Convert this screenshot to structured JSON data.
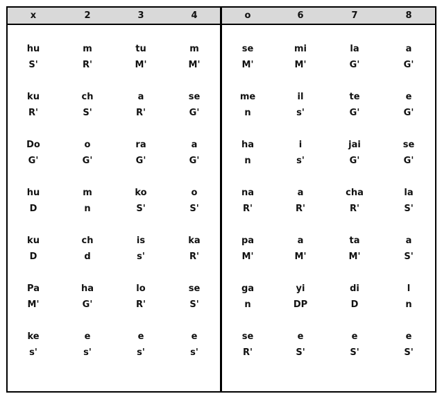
{
  "headers": [
    "x",
    "2",
    "3",
    "4",
    "o",
    "6",
    "7",
    "8"
  ],
  "rows": [
    [
      [
        "hu",
        "S'"
      ],
      [
        "m",
        "R'"
      ],
      [
        "tu",
        "M'"
      ],
      [
        "m",
        "M'"
      ],
      [
        "se",
        "M'"
      ],
      [
        "mi",
        "M'"
      ],
      [
        "la",
        "G'"
      ],
      [
        "a",
        "G'"
      ]
    ],
    [
      [
        "ku",
        "R'"
      ],
      [
        "ch",
        "S'"
      ],
      [
        "a",
        "R'"
      ],
      [
        "se",
        "G'"
      ],
      [
        "me",
        "n"
      ],
      [
        "il",
        "s'"
      ],
      [
        "te",
        "G'"
      ],
      [
        "e",
        "G'"
      ]
    ],
    [
      [
        "Do",
        "G'"
      ],
      [
        "o",
        "G'"
      ],
      [
        "ra",
        "G'"
      ],
      [
        "a",
        "G'"
      ],
      [
        "ha",
        "n"
      ],
      [
        "i",
        "s'"
      ],
      [
        "jai",
        "G'"
      ],
      [
        "se",
        "G'"
      ]
    ],
    [
      [
        "hu",
        "D"
      ],
      [
        "m",
        "n"
      ],
      [
        "ko",
        "S'"
      ],
      [
        "o",
        "S'"
      ],
      [
        "na",
        "R'"
      ],
      [
        "a",
        "R'"
      ],
      [
        "cha",
        "R'"
      ],
      [
        "la",
        "S'"
      ]
    ],
    [
      [
        "ku",
        "D"
      ],
      [
        "ch",
        "d"
      ],
      [
        "is",
        "s'"
      ],
      [
        "ka",
        "R'"
      ],
      [
        "pa",
        "M'"
      ],
      [
        "a",
        "M'"
      ],
      [
        "ta",
        "M'"
      ],
      [
        "a",
        "S'"
      ]
    ],
    [
      [
        "Pa",
        "M'"
      ],
      [
        "ha",
        "G'"
      ],
      [
        "lo",
        "R'"
      ],
      [
        "se",
        "S'"
      ],
      [
        "ga",
        "n"
      ],
      [
        "yi",
        "DP"
      ],
      [
        "di",
        "D"
      ],
      [
        "l",
        "n"
      ]
    ],
    [
      [
        "ke",
        "s'"
      ],
      [
        "e",
        "s'"
      ],
      [
        "e",
        "s'"
      ],
      [
        "e",
        "s'"
      ],
      [
        "se",
        "R'"
      ],
      [
        "e",
        "S'"
      ],
      [
        "e",
        "S'"
      ],
      [
        "e",
        "S'"
      ]
    ]
  ]
}
